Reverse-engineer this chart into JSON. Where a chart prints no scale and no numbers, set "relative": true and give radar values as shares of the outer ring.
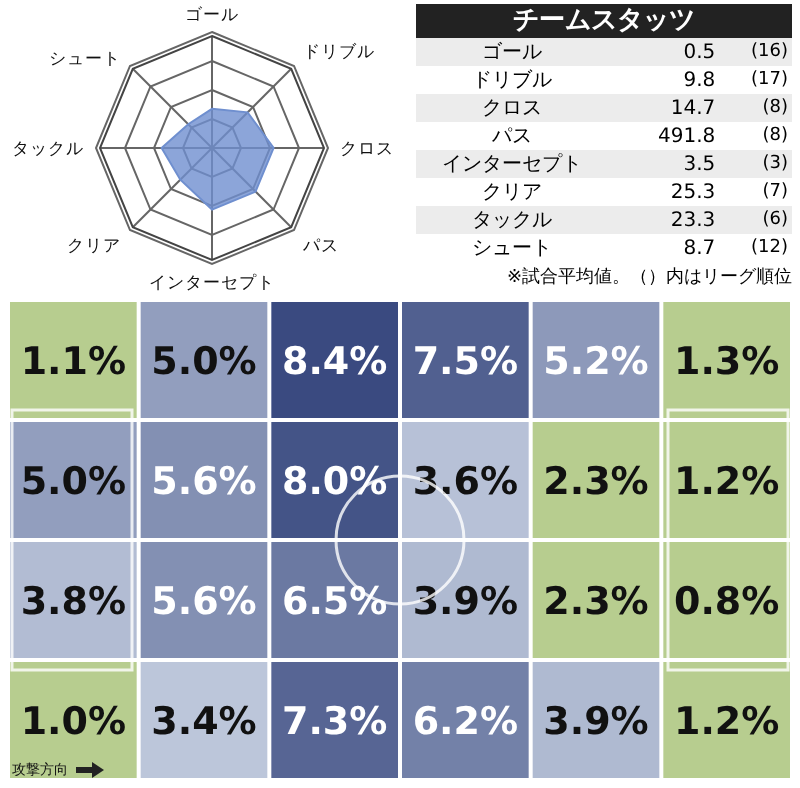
{
  "chart_data": [
    {
      "type": "radar",
      "relative": true,
      "grid": true,
      "categories": [
        "ゴール",
        "ドリブル",
        "クロス",
        "パス",
        "インターセプト",
        "クリア",
        "タックル",
        "シュート"
      ],
      "series": [
        {
          "color": "#6f8fcf",
          "values": [
            0.35,
            0.45,
            0.55,
            0.55,
            0.55,
            0.4,
            0.45,
            0.3
          ]
        }
      ]
    },
    {
      "type": "other",
      "title": "チームスタッツ",
      "categories": [
        "ゴール",
        "ドリブル",
        "クロス",
        "パス",
        "インターセプト",
        "クリア",
        "タックル",
        "シュート"
      ],
      "data_labels": true,
      "series": [
        {
          "colors": [
            "#ececec",
            "#ffffff",
            "#ececec",
            "#ffffff",
            "#ececec",
            "#ffffff",
            "#ececec",
            "#ffffff"
          ],
          "values": [
            0.5,
            9.8,
            14.7,
            491.8,
            3.5,
            25.3,
            23.3,
            8.7
          ]
        },
        {
          "values": [
            16,
            17,
            8,
            8,
            3,
            7,
            6,
            12
          ],
          "value_labels": [
            "(16)",
            "(17)",
            "(8)",
            "(8)",
            "(3)",
            "(7)",
            "(6)",
            "(12)"
          ]
        }
      ],
      "annotations": [
        "※試合平均値。（）内はリーグ順位"
      ]
    },
    {
      "type": "heatmap",
      "categories": [
        null,
        null,
        null,
        null,
        null,
        null
      ],
      "y_categories": [
        null,
        null,
        null,
        null
      ],
      "cells": [
        [
          1.1,
          5.0,
          8.4,
          7.5,
          5.2,
          1.3
        ],
        [
          5.0,
          5.6,
          8.0,
          3.6,
          2.3,
          1.2
        ],
        [
          3.8,
          5.6,
          6.5,
          3.9,
          2.3,
          0.8
        ],
        [
          1.0,
          3.4,
          7.3,
          6.2,
          3.9,
          1.2
        ]
      ],
      "cell_labels": [
        [
          "1.1%",
          "5.0%",
          "8.4%",
          "7.5%",
          "5.2%",
          "1.3%"
        ],
        [
          "5.0%",
          "5.6%",
          "8.0%",
          "3.6%",
          "2.3%",
          "1.2%"
        ],
        [
          "3.8%",
          "5.6%",
          "6.5%",
          "3.9%",
          "2.3%",
          "0.8%"
        ],
        [
          "1.0%",
          "3.4%",
          "7.3%",
          "6.2%",
          "3.9%",
          "1.2%"
        ]
      ],
      "annotations": [
        "攻撃方向"
      ]
    }
  ]
}
